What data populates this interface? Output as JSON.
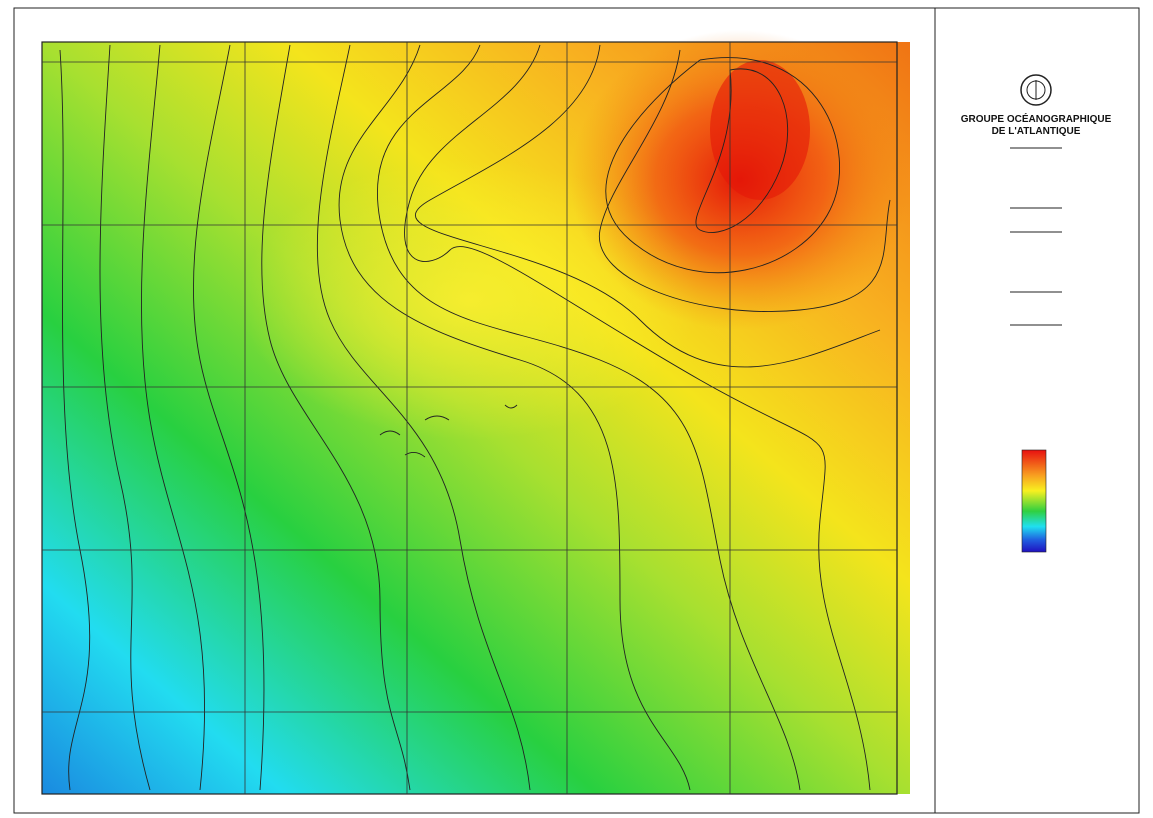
{
  "header": {
    "title_lines": [
      "GROUPE OCÉANOGRAPHIQUE",
      "DE L'ATLANTIQUE"
    ]
  }
}
